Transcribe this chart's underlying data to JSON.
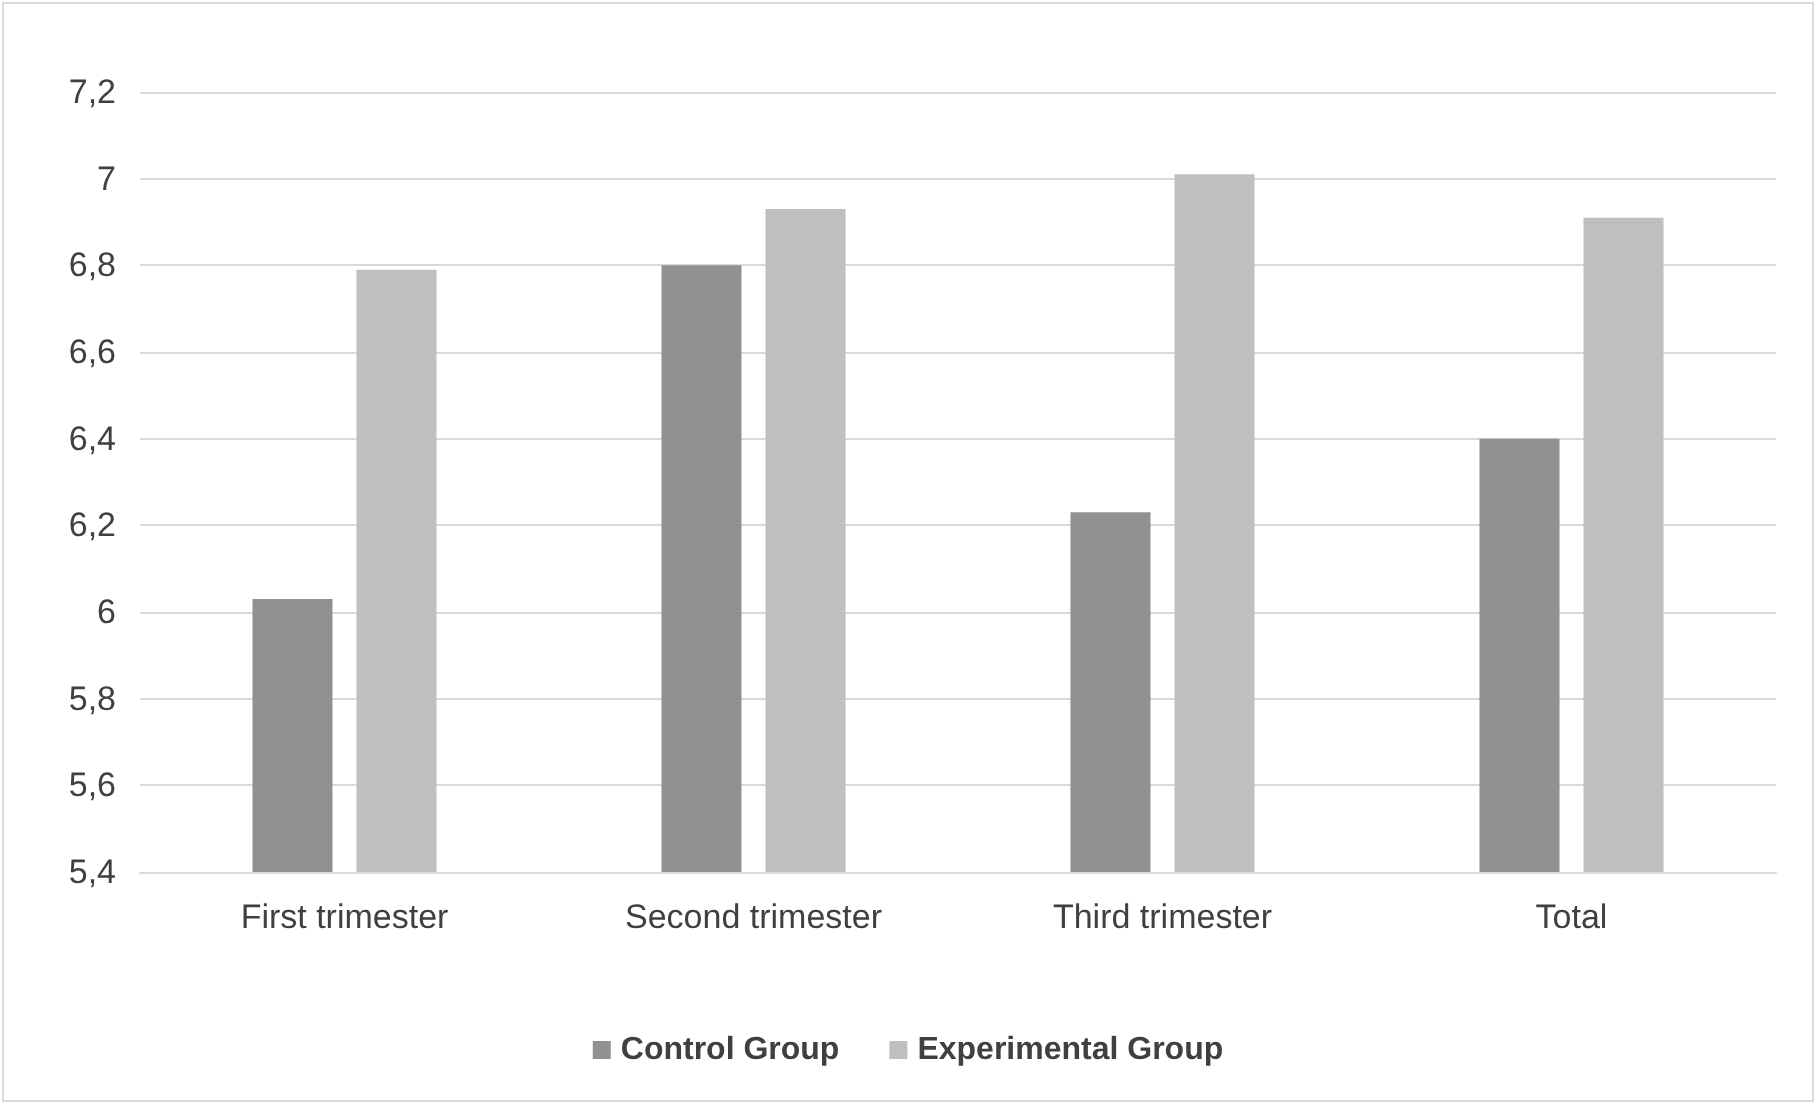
{
  "chart_data": {
    "type": "bar",
    "categories": [
      "First trimester",
      "Second trimester",
      "Third trimester",
      "Total"
    ],
    "series": [
      {
        "name": "Control Group",
        "color": "#919191",
        "values": [
          6.03,
          6.8,
          6.23,
          6.4
        ]
      },
      {
        "name": "Experimental Group",
        "color": "#bfbfbf",
        "values": [
          6.79,
          6.93,
          7.01,
          6.91
        ]
      }
    ],
    "ylim": [
      5.4,
      7.2
    ],
    "yticks": [
      {
        "value": 5.4,
        "label": "5,4"
      },
      {
        "value": 5.6,
        "label": "5,6"
      },
      {
        "value": 5.8,
        "label": "5,8"
      },
      6,
      {
        "value": 6.2,
        "label": "6,2"
      },
      {
        "value": 6.4,
        "label": "6,4"
      },
      {
        "value": 6.6,
        "label": "6,6"
      },
      {
        "value": 6.8,
        "label": "6,8"
      },
      7,
      {
        "value": 7.2,
        "label": "7,2"
      }
    ],
    "grid": "y",
    "legend": "bottom"
  }
}
